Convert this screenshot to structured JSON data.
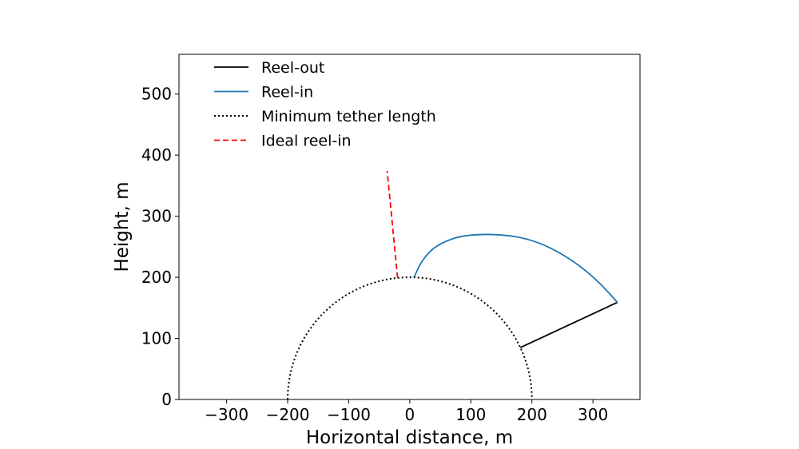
{
  "chart_data": {
    "type": "line",
    "xlabel": "Horizontal distance, m",
    "ylabel": "Height, m",
    "xlim": [
      -378,
      377
    ],
    "ylim": [
      0,
      565
    ],
    "xticks": [
      -300,
      -200,
      -100,
      0,
      100,
      200,
      300
    ],
    "yticks": [
      0,
      100,
      200,
      300,
      400,
      500
    ],
    "xtick_labels": [
      "−300",
      "−200",
      "−100",
      "0",
      "100",
      "200",
      "300"
    ],
    "ytick_labels": [
      "0",
      "100",
      "200",
      "300",
      "400",
      "500"
    ],
    "legend_position": "upper-left",
    "series": [
      {
        "name": "Reel-out",
        "style": "solid",
        "color": "#000000",
        "x": [
          181,
          340
        ],
        "y": [
          85,
          159
        ]
      },
      {
        "name": "Reel-in",
        "style": "solid",
        "color": "#1f77b4",
        "x": [
          7,
          20,
          40,
          70,
          100,
          135,
          170,
          200,
          230,
          260,
          290,
          315,
          340
        ],
        "y": [
          200,
          226,
          248,
          263,
          269,
          270,
          267,
          260,
          248,
          231,
          209,
          186,
          159
        ]
      },
      {
        "name": "Minimum tether length",
        "style": "dotted",
        "color": "#000000",
        "circle_radius": 200,
        "x": [
          -200,
          -190,
          -173,
          -141,
          -100,
          -52,
          0,
          52,
          100,
          141,
          173,
          190,
          200
        ],
        "y": [
          0,
          62,
          100,
          141,
          173,
          193,
          200,
          193,
          173,
          141,
          100,
          62,
          0
        ]
      },
      {
        "name": "Ideal reel-in",
        "style": "dashed",
        "color": "#ff0000",
        "x": [
          -20,
          -37
        ],
        "y": [
          199,
          374
        ]
      }
    ]
  }
}
